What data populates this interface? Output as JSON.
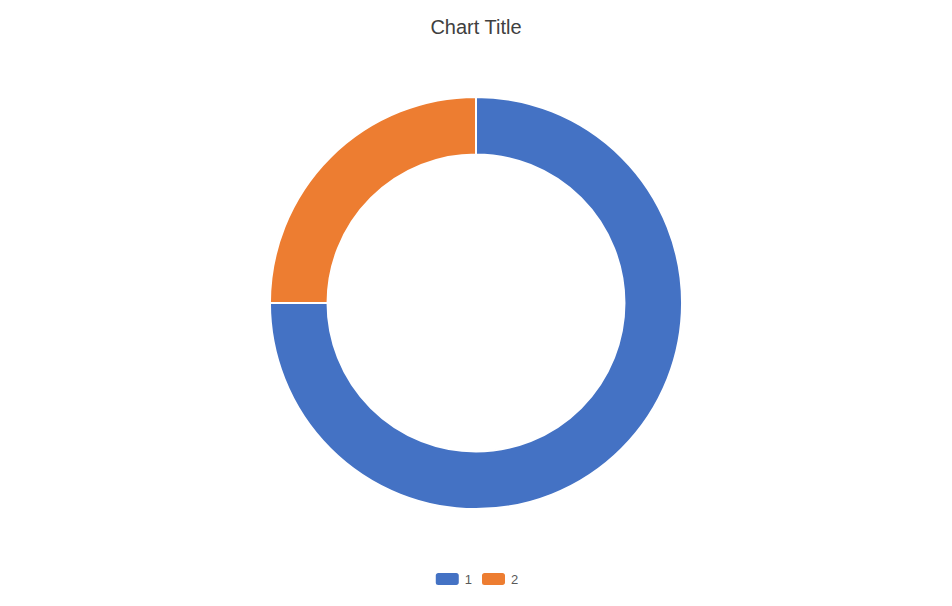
{
  "chart_data": {
    "type": "donut",
    "title": "Chart Title",
    "categories": [
      "1",
      "2"
    ],
    "values": [
      3,
      1
    ],
    "colors": [
      "#4472C4",
      "#ED7D31"
    ],
    "legend": "bottom"
  }
}
